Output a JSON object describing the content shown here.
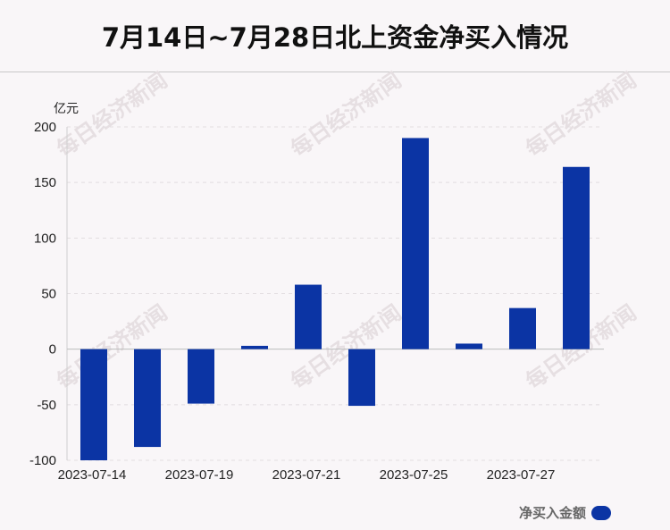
{
  "colors": {
    "bar": "#0b34a4",
    "background": "#f9f6f8",
    "watermark": "#e6dfe2"
  },
  "watermark_text": "每日经济新闻",
  "chart_data": {
    "type": "bar",
    "title": "7月14日~7月28日北上资金净买入情况",
    "ylabel": "亿元",
    "xlabel": "",
    "ylim": [
      -100,
      200
    ],
    "yticks": [
      200,
      150,
      100,
      50,
      0,
      -50,
      -100
    ],
    "categories": [
      "2023-07-14",
      "",
      "2023-07-19",
      "",
      "2023-07-21",
      "",
      "2023-07-25",
      "",
      "2023-07-27",
      ""
    ],
    "series": [
      {
        "name": "净买入金额",
        "values": [
          -100,
          -88,
          -49,
          3,
          58,
          -51,
          190,
          5,
          37,
          164
        ]
      }
    ],
    "legend": "bottom-right",
    "grid": true
  }
}
